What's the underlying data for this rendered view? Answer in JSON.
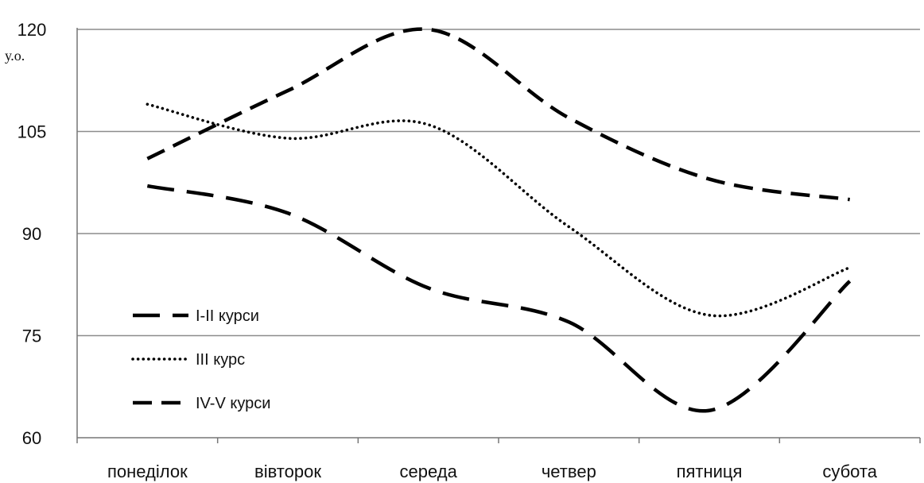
{
  "chart_data": {
    "type": "line",
    "title": "",
    "xlabel": "",
    "ylabel": "",
    "unit_label": "у.о.",
    "categories": [
      "понеділок",
      "вівторок",
      "середа",
      "четвер",
      "пятниця",
      "субота"
    ],
    "ylim": [
      60,
      120
    ],
    "yticks": [
      60,
      75,
      90,
      105,
      120
    ],
    "grid": true,
    "legend_position": "left",
    "smooth": true,
    "series": [
      {
        "name": "I-II курси",
        "style": "long-dash",
        "color": "#000000",
        "values": [
          97,
          93,
          82,
          77,
          64,
          83
        ]
      },
      {
        "name": "III курс",
        "style": "dotted",
        "color": "#000000",
        "values": [
          109,
          104,
          106,
          91,
          78,
          85
        ]
      },
      {
        "name": "IV-V курси",
        "style": "dashed",
        "color": "#000000",
        "values": [
          101,
          111,
          120,
          107,
          98,
          95
        ]
      }
    ]
  }
}
